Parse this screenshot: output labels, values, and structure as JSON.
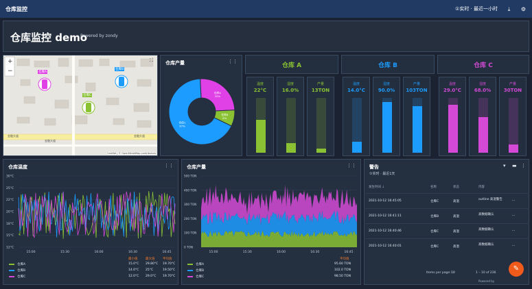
{
  "topbar": {
    "brand": "仓库监控",
    "time_range": "①实时 · 最近一小时",
    "download": "⤓",
    "settings": "⚙"
  },
  "header": {
    "title": "仓库监控 demo",
    "powered_by": "Powered by zondy"
  },
  "map": {
    "zoom_in": "+",
    "zoom_out": "−",
    "fullscreen": "⛶",
    "markers": [
      "仓库A",
      "仓库B",
      "仓库C"
    ],
    "road_labels": [
      "金融大道",
      "金融大道",
      "金融大道"
    ],
    "attribution": "Leaflet | © OpenStreetMap contributors"
  },
  "pie": {
    "title": "仓库产量",
    "dots": "⋮⋮",
    "slices": [
      {
        "label": "仓库A 25%",
        "value": 25,
        "color": "#e041e6"
      },
      {
        "label": "仓库B 8%",
        "value": 8,
        "color": "#8ac234"
      },
      {
        "label": "仓库C 67%",
        "value": 67,
        "color": "#1c9cff"
      }
    ]
  },
  "warehouses": [
    {
      "name": "仓库 A",
      "color": "#8ac234",
      "cols": [
        {
          "label": "温度",
          "value": "22°C",
          "level": 0.6
        },
        {
          "label": "湿度",
          "value": "16.0%",
          "level": 0.18
        },
        {
          "label": "产量",
          "value": "13TON",
          "level": 0.08
        }
      ]
    },
    {
      "name": "仓库 B",
      "color": "#1c9cff",
      "cols": [
        {
          "label": "温度",
          "value": "14.0°C",
          "level": 0.2
        },
        {
          "label": "湿度",
          "value": "90.0%",
          "level": 0.92
        },
        {
          "label": "产量",
          "value": "103TON",
          "level": 0.85
        }
      ]
    },
    {
      "name": "仓库 C",
      "color": "#d449d6",
      "cols": [
        {
          "label": "温度",
          "value": "29.0°C",
          "level": 0.88
        },
        {
          "label": "湿度",
          "value": "68.0%",
          "level": 0.65
        },
        {
          "label": "产量",
          "value": "30TON",
          "level": 0.15
        }
      ]
    }
  ],
  "temp_chart": {
    "title": "仓库温度",
    "dots": "⋮⋮",
    "y_ticks": [
      "30°C",
      "25°C",
      "22°C",
      "20°C",
      "18°C",
      "15°C",
      "12°C"
    ],
    "x_ticks": [
      "15:00",
      "15:30",
      "16:00",
      "16:30",
      "16:45"
    ],
    "legend_headers": [
      "最小值",
      "最大值",
      "平均值"
    ],
    "legend": [
      {
        "name": "仓库A",
        "color": "#8ac234",
        "vals": [
          "15.0°C",
          "29.80°C",
          "19.70°C"
        ]
      },
      {
        "name": "仓库B",
        "color": "#1c9cff",
        "vals": [
          "14.0°C",
          "25°C",
          "19.50°C"
        ]
      },
      {
        "name": "仓库C",
        "color": "#d449d6",
        "vals": [
          "12.0°C",
          "29.0°C",
          "19.70°C"
        ]
      }
    ]
  },
  "prod_chart": {
    "title": "仓库产量",
    "dots": "⋮⋮",
    "y_ticks": [
      "500 TON",
      "400 TON",
      "300 TON",
      "200 TON",
      "100 TON",
      "0 TON"
    ],
    "x_ticks": [
      "15:00",
      "15:30",
      "16:00",
      "16:30",
      "16:45"
    ],
    "legend_header": "平均值",
    "legend": [
      {
        "name": "仓库A",
        "color": "#8ac234",
        "val": "95.60 TON"
      },
      {
        "name": "仓库B",
        "color": "#1c9cff",
        "val": "102.0 TON"
      },
      {
        "name": "仓库C",
        "color": "#d449d6",
        "val": "98.50 TON"
      }
    ]
  },
  "alerts": {
    "title": "警告",
    "subtitle": "①实时 · 最近1天",
    "header_icons": [
      "▾",
      "▬",
      "⋮"
    ],
    "columns": [
      "发生时间 ↓",
      "名称",
      "状态",
      "内容"
    ],
    "rows": [
      {
        "time": "2021-10-12 16:45:05",
        "name": "仓库C",
        "state": "高温",
        "content": "outline 高温警告",
        "more": "···"
      },
      {
        "time": "2021-10-12 16:41:11",
        "name": "仓库B",
        "state": "高温",
        "content": "高数据确认",
        "more": "···"
      },
      {
        "time": "2021-10-12 16:40:46",
        "name": "仓库C",
        "state": "高温",
        "content": "高数据确认",
        "more": "···"
      },
      {
        "time": "2021-10-12 16:40:01",
        "name": "仓库C",
        "state": "高温",
        "content": "高数据确认",
        "more": "···"
      }
    ],
    "pager_label": "Items per page:",
    "pager_value": "10",
    "pager_range": "1 – 10 of 236",
    "footer": "Powered by",
    "fab": "✎"
  }
}
